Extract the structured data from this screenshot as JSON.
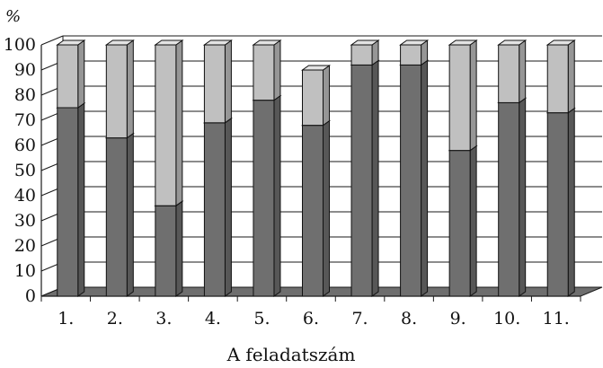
{
  "chart_data": {
    "type": "bar",
    "stacked": true,
    "three_d": true,
    "title": "",
    "ylabel": "%",
    "xlabel": "A feladatszám",
    "ylim": [
      0,
      100
    ],
    "ytick_step": 10,
    "yticks": [
      "0",
      "10",
      "20",
      "30",
      "40",
      "50",
      "60",
      "70",
      "80",
      "90",
      "100"
    ],
    "grid": true,
    "legend": "none",
    "categories": [
      "1.",
      "2.",
      "3.",
      "4.",
      "5.",
      "6.",
      "7.",
      "8.",
      "9.",
      "10.",
      "11."
    ],
    "series": [
      {
        "values": [
          75,
          63,
          36,
          69,
          78,
          68,
          92,
          92,
          58,
          77,
          73
        ],
        "color": "#6f6f6f"
      },
      {
        "values": [
          25,
          37,
          64,
          31,
          22,
          22,
          8,
          8,
          42,
          23,
          27
        ],
        "color": "#c0c0c0"
      }
    ]
  }
}
